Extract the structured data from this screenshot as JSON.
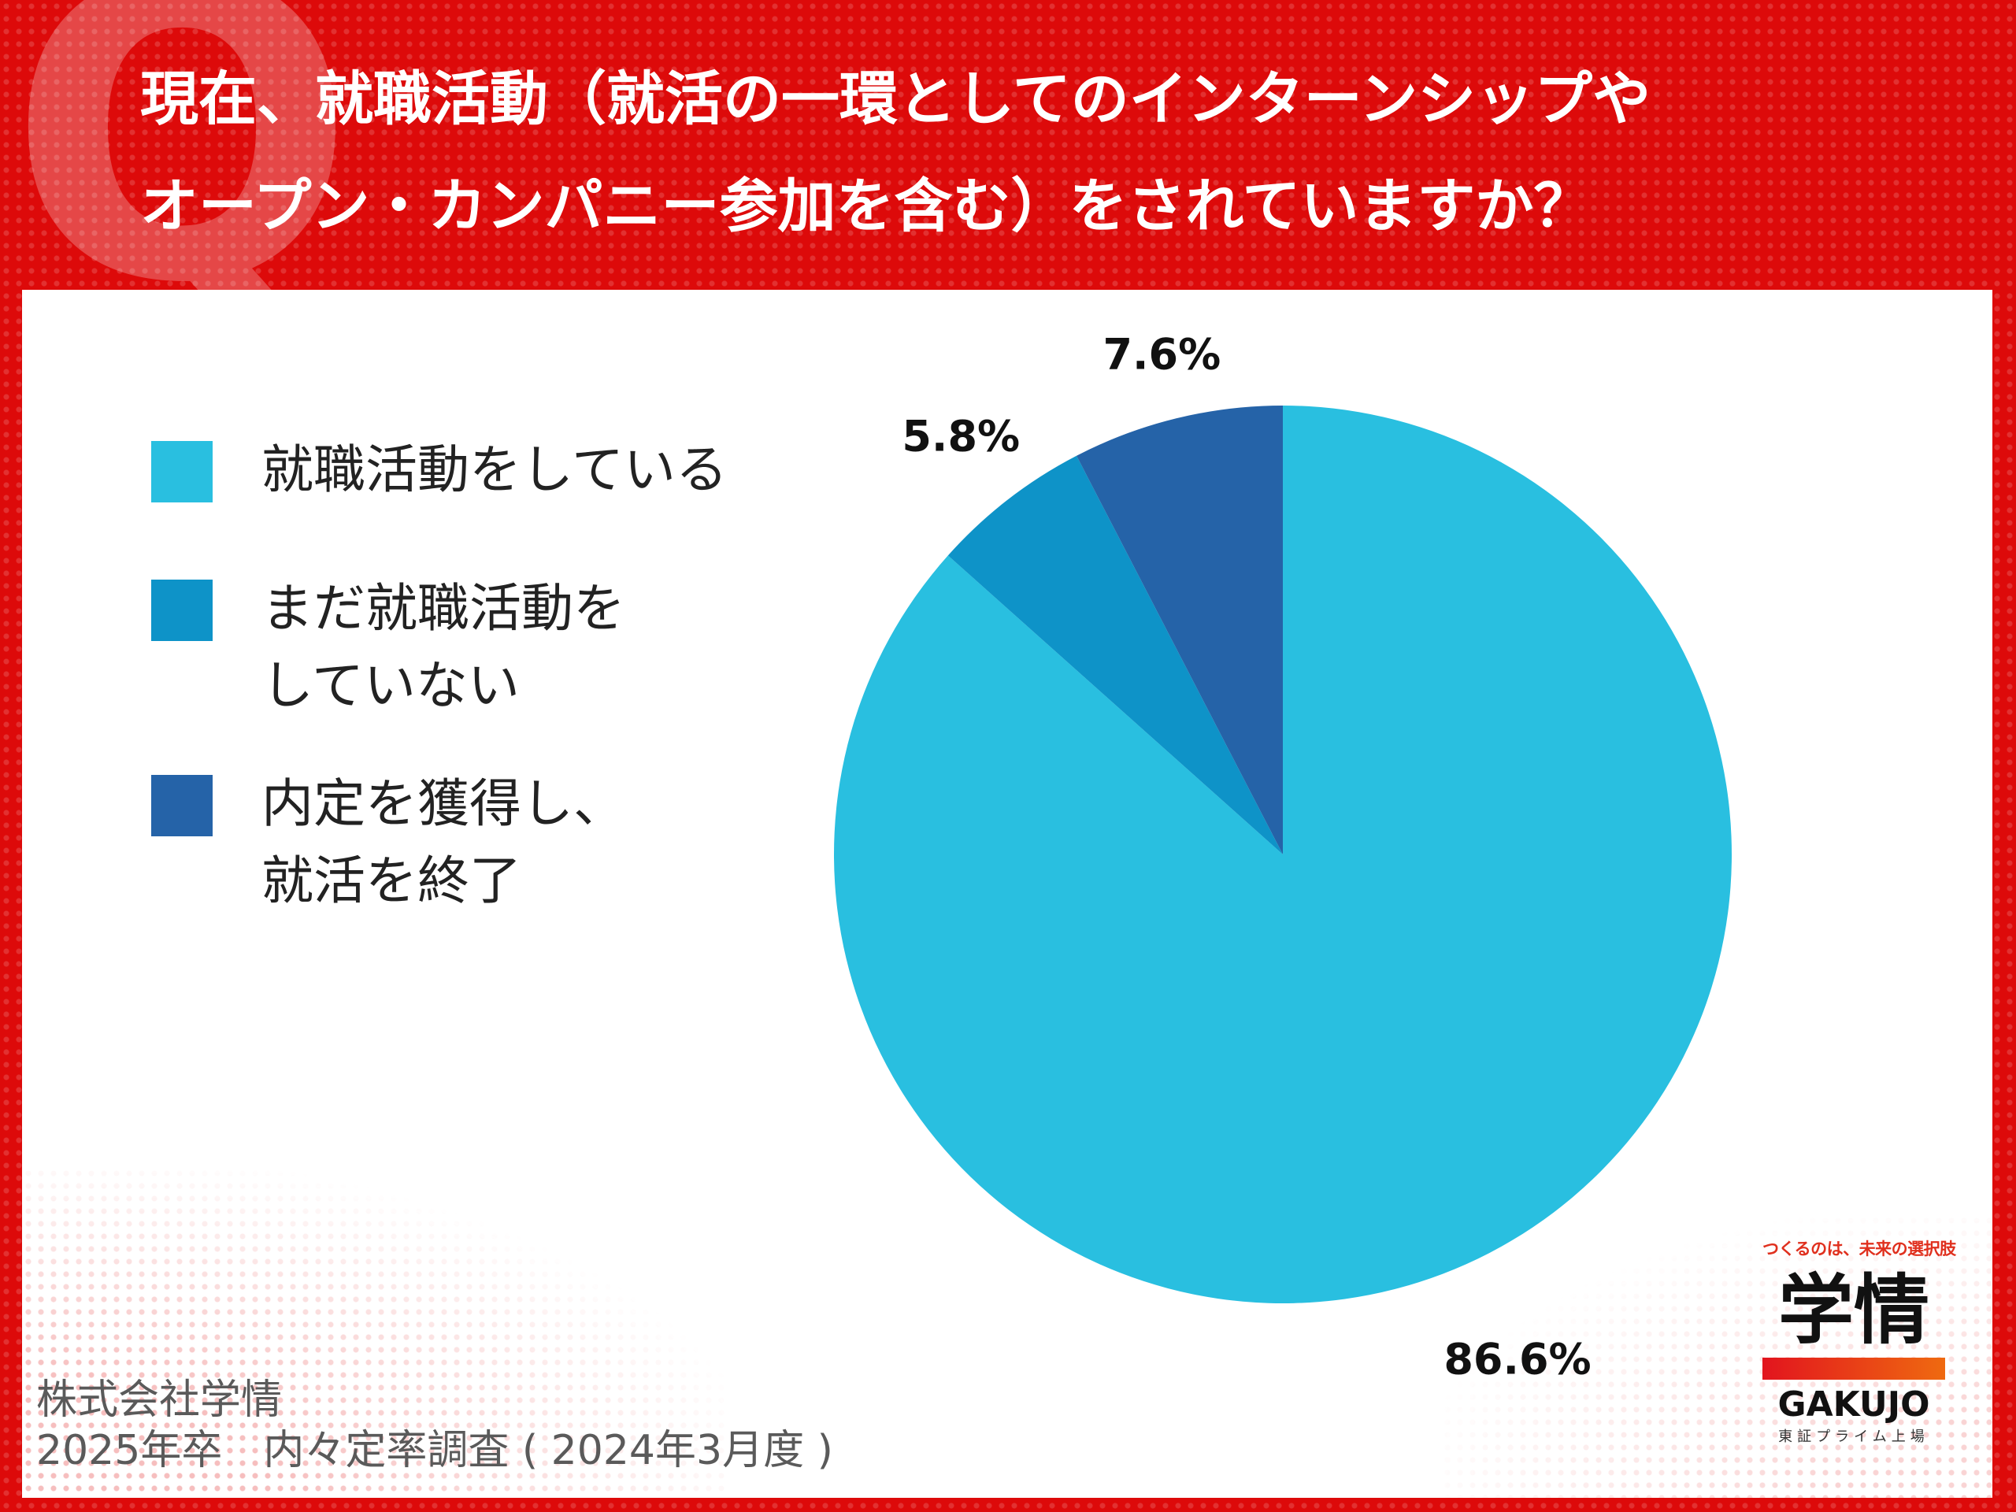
{
  "header": {
    "title_line1": "現在、就職活動（就活の一環としてのインターンシップや",
    "title_line2": "オープン・カンパニー参加を含む）をされていますか？",
    "q_mark": "Q"
  },
  "chart_data": {
    "type": "pie",
    "title": "現在、就職活動（就活の一環としてのインターンシップやオープン・カンパニー参加を含む）をされていますか？",
    "categories": [
      "就職活動をしている",
      "まだ就職活動をしていない",
      "内定を獲得し、就活を終了"
    ],
    "values": [
      86.6,
      5.8,
      7.6
    ],
    "labels": [
      "86.6%",
      "5.8%",
      "7.6%"
    ],
    "colors": [
      "#29bfe0",
      "#0e93c8",
      "#2563a8"
    ],
    "legend_lines": [
      [
        "就職活動をしている"
      ],
      [
        "まだ就職活動を",
        "していない"
      ],
      [
        "内定を獲得し、",
        "就活を終了"
      ]
    ],
    "legend_position": "left"
  },
  "source": {
    "line1": "株式会社学情",
    "line2": "2025年卒　内々定率調査 ( 2024年3月度 )"
  },
  "logo": {
    "tagline": "つくるのは、未来の選択肢",
    "mark": "学情",
    "wordmark": "GAKUJO",
    "sub": "東証プライム上場"
  }
}
